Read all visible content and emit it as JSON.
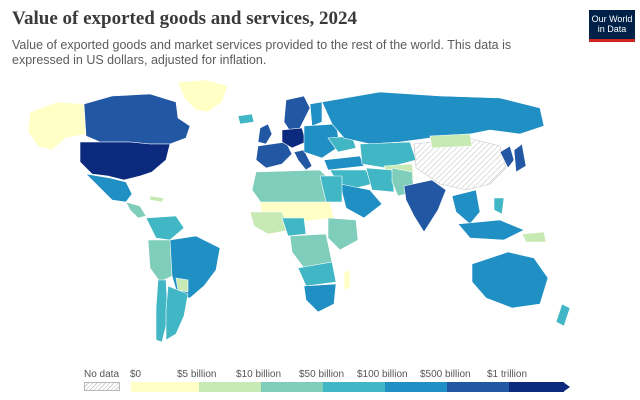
{
  "title": "Value of exported goods and services, 2024",
  "subtitle": "Value of exported goods and market services provided to the rest of the world. This data is expressed in US dollars, adjusted for inflation.",
  "logo": {
    "line1": "Our World",
    "line2": "in Data"
  },
  "map": {
    "ocean": "#ffffff",
    "no_data_color": "#e6e6e6",
    "legend": {
      "no_data_label": "No data",
      "thresholds": [
        "$0",
        "$5 billion",
        "$10 billion",
        "$50 billion",
        "$100 billion",
        "$500 billion",
        "$1 trillion"
      ],
      "colors": [
        "#ffffc6",
        "#c7e9b4",
        "#7fcdbb",
        "#41b6c4",
        "#1f8fc4",
        "#2257a4",
        "#0b2a7e"
      ]
    }
  }
}
